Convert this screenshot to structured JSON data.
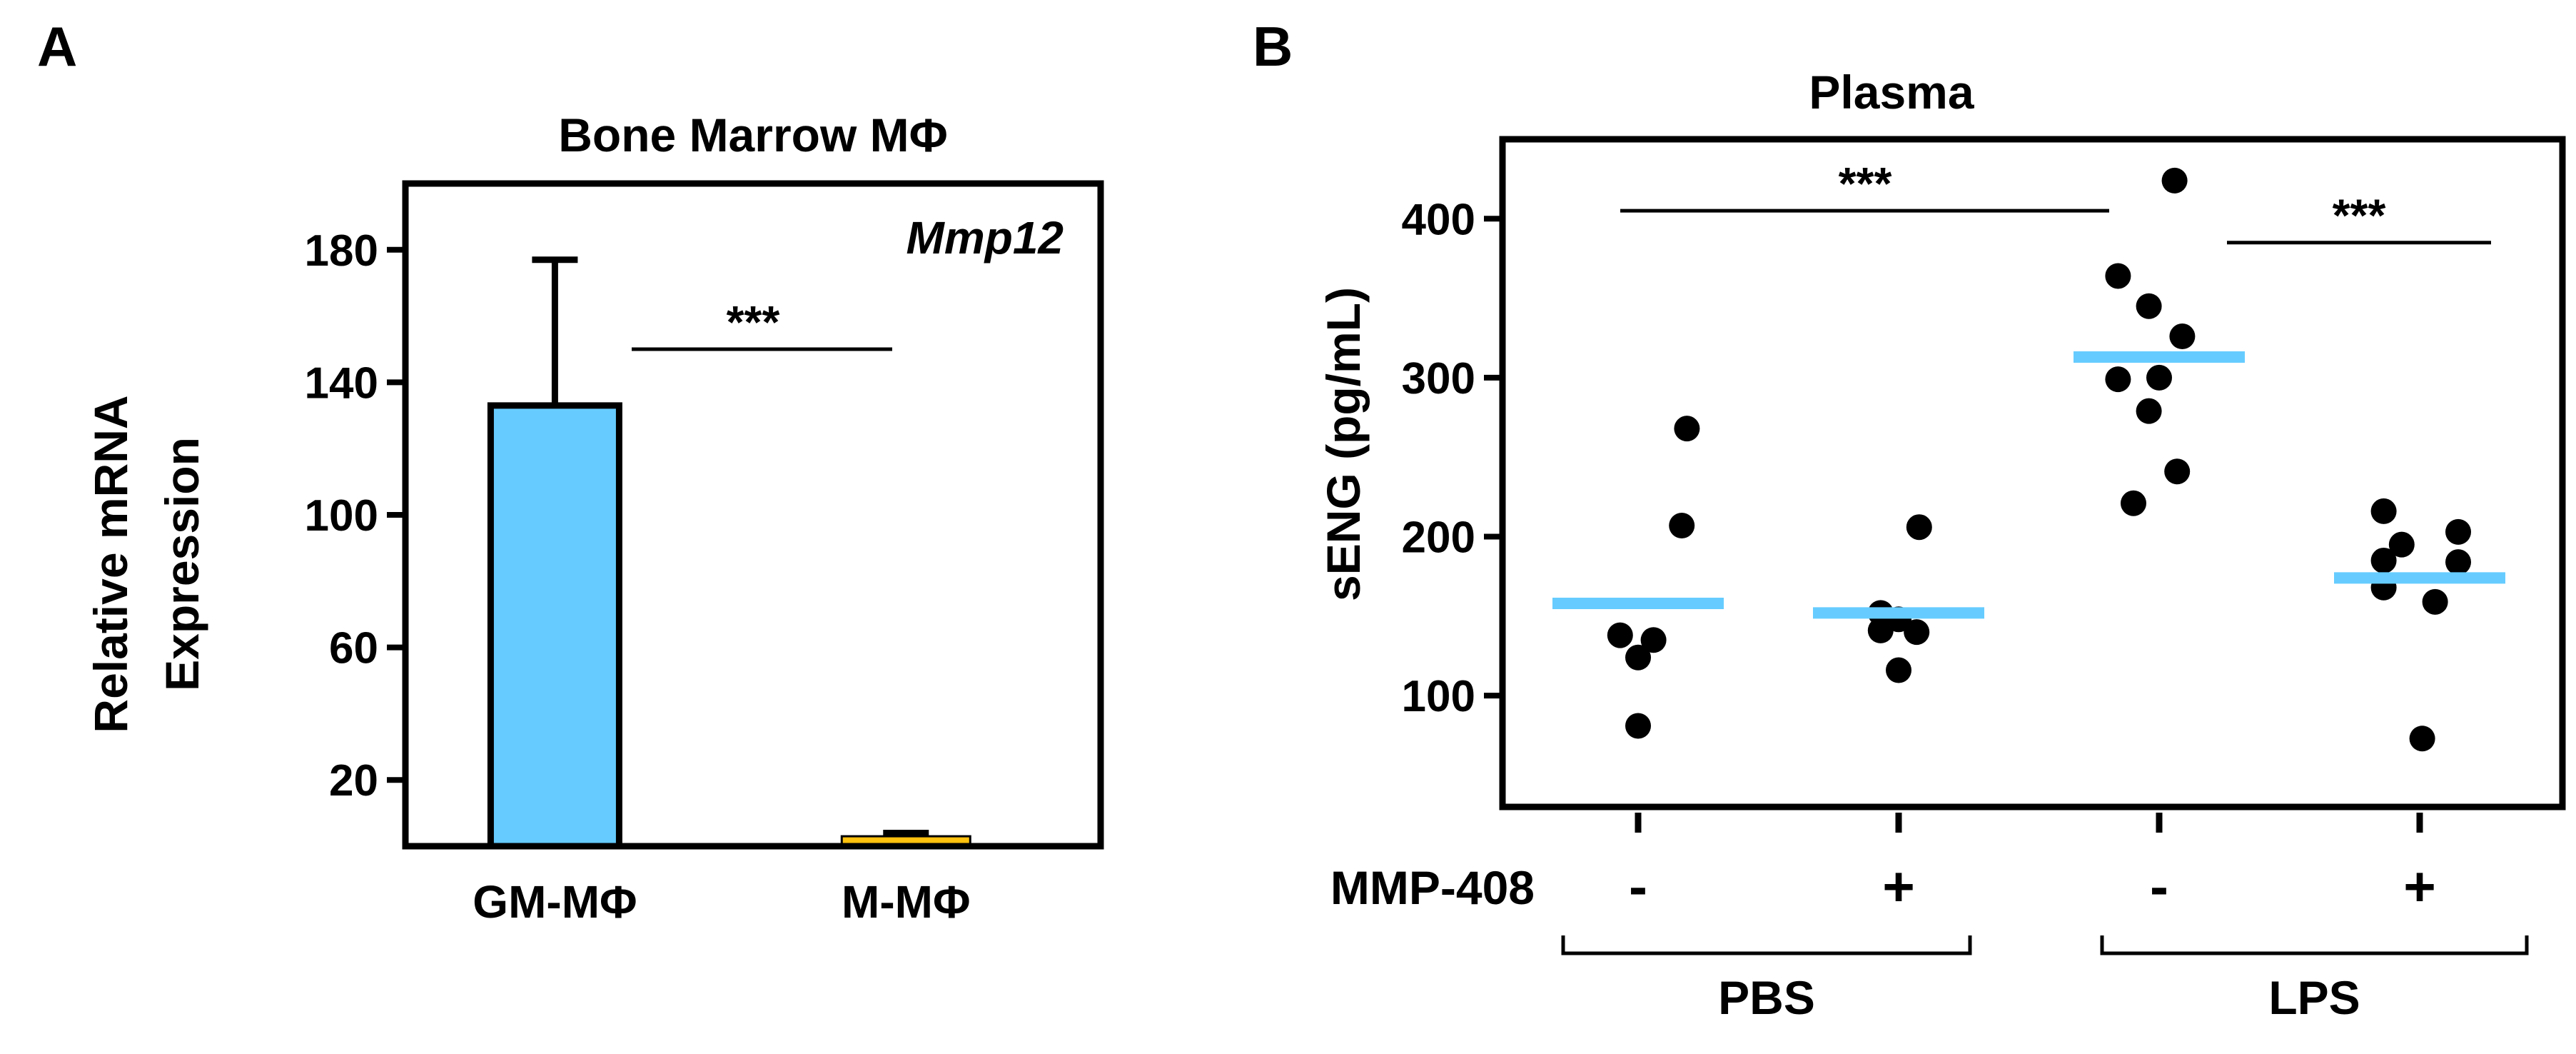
{
  "chart_data": [
    {
      "panel_label": "A",
      "type": "bar",
      "title": "Bone Marrow  MΦ",
      "annotation": "Mmp12",
      "ylabel_lines": [
        "Relative mRNA",
        "Expression"
      ],
      "ylim": [
        0,
        200
      ],
      "yticks": [
        20,
        60,
        100,
        140,
        180
      ],
      "categories": [
        "GM-MΦ",
        "M-MΦ"
      ],
      "values": [
        133,
        3
      ],
      "errors": [
        44,
        1
      ],
      "colors": [
        "#66ccff",
        "#ffc20e"
      ],
      "significance": {
        "label": "***",
        "from": 0,
        "to": 1
      }
    },
    {
      "panel_label": "B",
      "type": "scatter",
      "title": "Plasma",
      "ylabel": "sENG (pg/mL)",
      "ylim": [
        30,
        450
      ],
      "yticks": [
        100,
        200,
        300,
        400
      ],
      "treatment_label": "MMP-408",
      "groups": [
        {
          "treatment": "-",
          "condition": "PBS",
          "mean": 158,
          "points": [
            [
              0.95,
              268
            ],
            [
              0.85,
              207
            ],
            [
              0.3,
              135
            ],
            [
              0.0,
              124
            ],
            [
              -0.35,
              138
            ],
            [
              0.0,
              81
            ]
          ]
        },
        {
          "treatment": "+",
          "condition": "PBS",
          "mean": 152,
          "points": [
            [
              0.4,
              206
            ],
            [
              -0.35,
              152
            ],
            [
              0.0,
              148
            ],
            [
              -0.35,
              141
            ],
            [
              0.0,
              116
            ],
            [
              0.35,
              140
            ]
          ]
        },
        {
          "treatment": "-",
          "condition": "LPS",
          "mean": 313,
          "points": [
            [
              0.3,
              424
            ],
            [
              -0.8,
              364
            ],
            [
              -0.2,
              345
            ],
            [
              0.45,
              326
            ],
            [
              -0.8,
              299
            ],
            [
              0.0,
              300
            ],
            [
              -0.2,
              279
            ],
            [
              0.35,
              241
            ],
            [
              -0.5,
              221
            ]
          ]
        },
        {
          "treatment": "+",
          "condition": "LPS",
          "mean": 174,
          "points": [
            [
              -0.7,
              216
            ],
            [
              0.75,
              203
            ],
            [
              -0.35,
              195
            ],
            [
              -0.7,
              185
            ],
            [
              0.75,
              184
            ],
            [
              -0.7,
              168
            ],
            [
              0.3,
              159
            ],
            [
              0.05,
              73
            ]
          ]
        }
      ],
      "brackets": [
        {
          "label": "PBS",
          "groups": [
            0,
            1
          ]
        },
        {
          "label": "LPS",
          "groups": [
            2,
            3
          ]
        }
      ],
      "significance": [
        {
          "label": "***",
          "from": 0,
          "to": 2
        },
        {
          "label": "***",
          "from": 2,
          "to": 3
        }
      ],
      "mean_color": "#66ccff",
      "point_color": "#000000"
    }
  ]
}
